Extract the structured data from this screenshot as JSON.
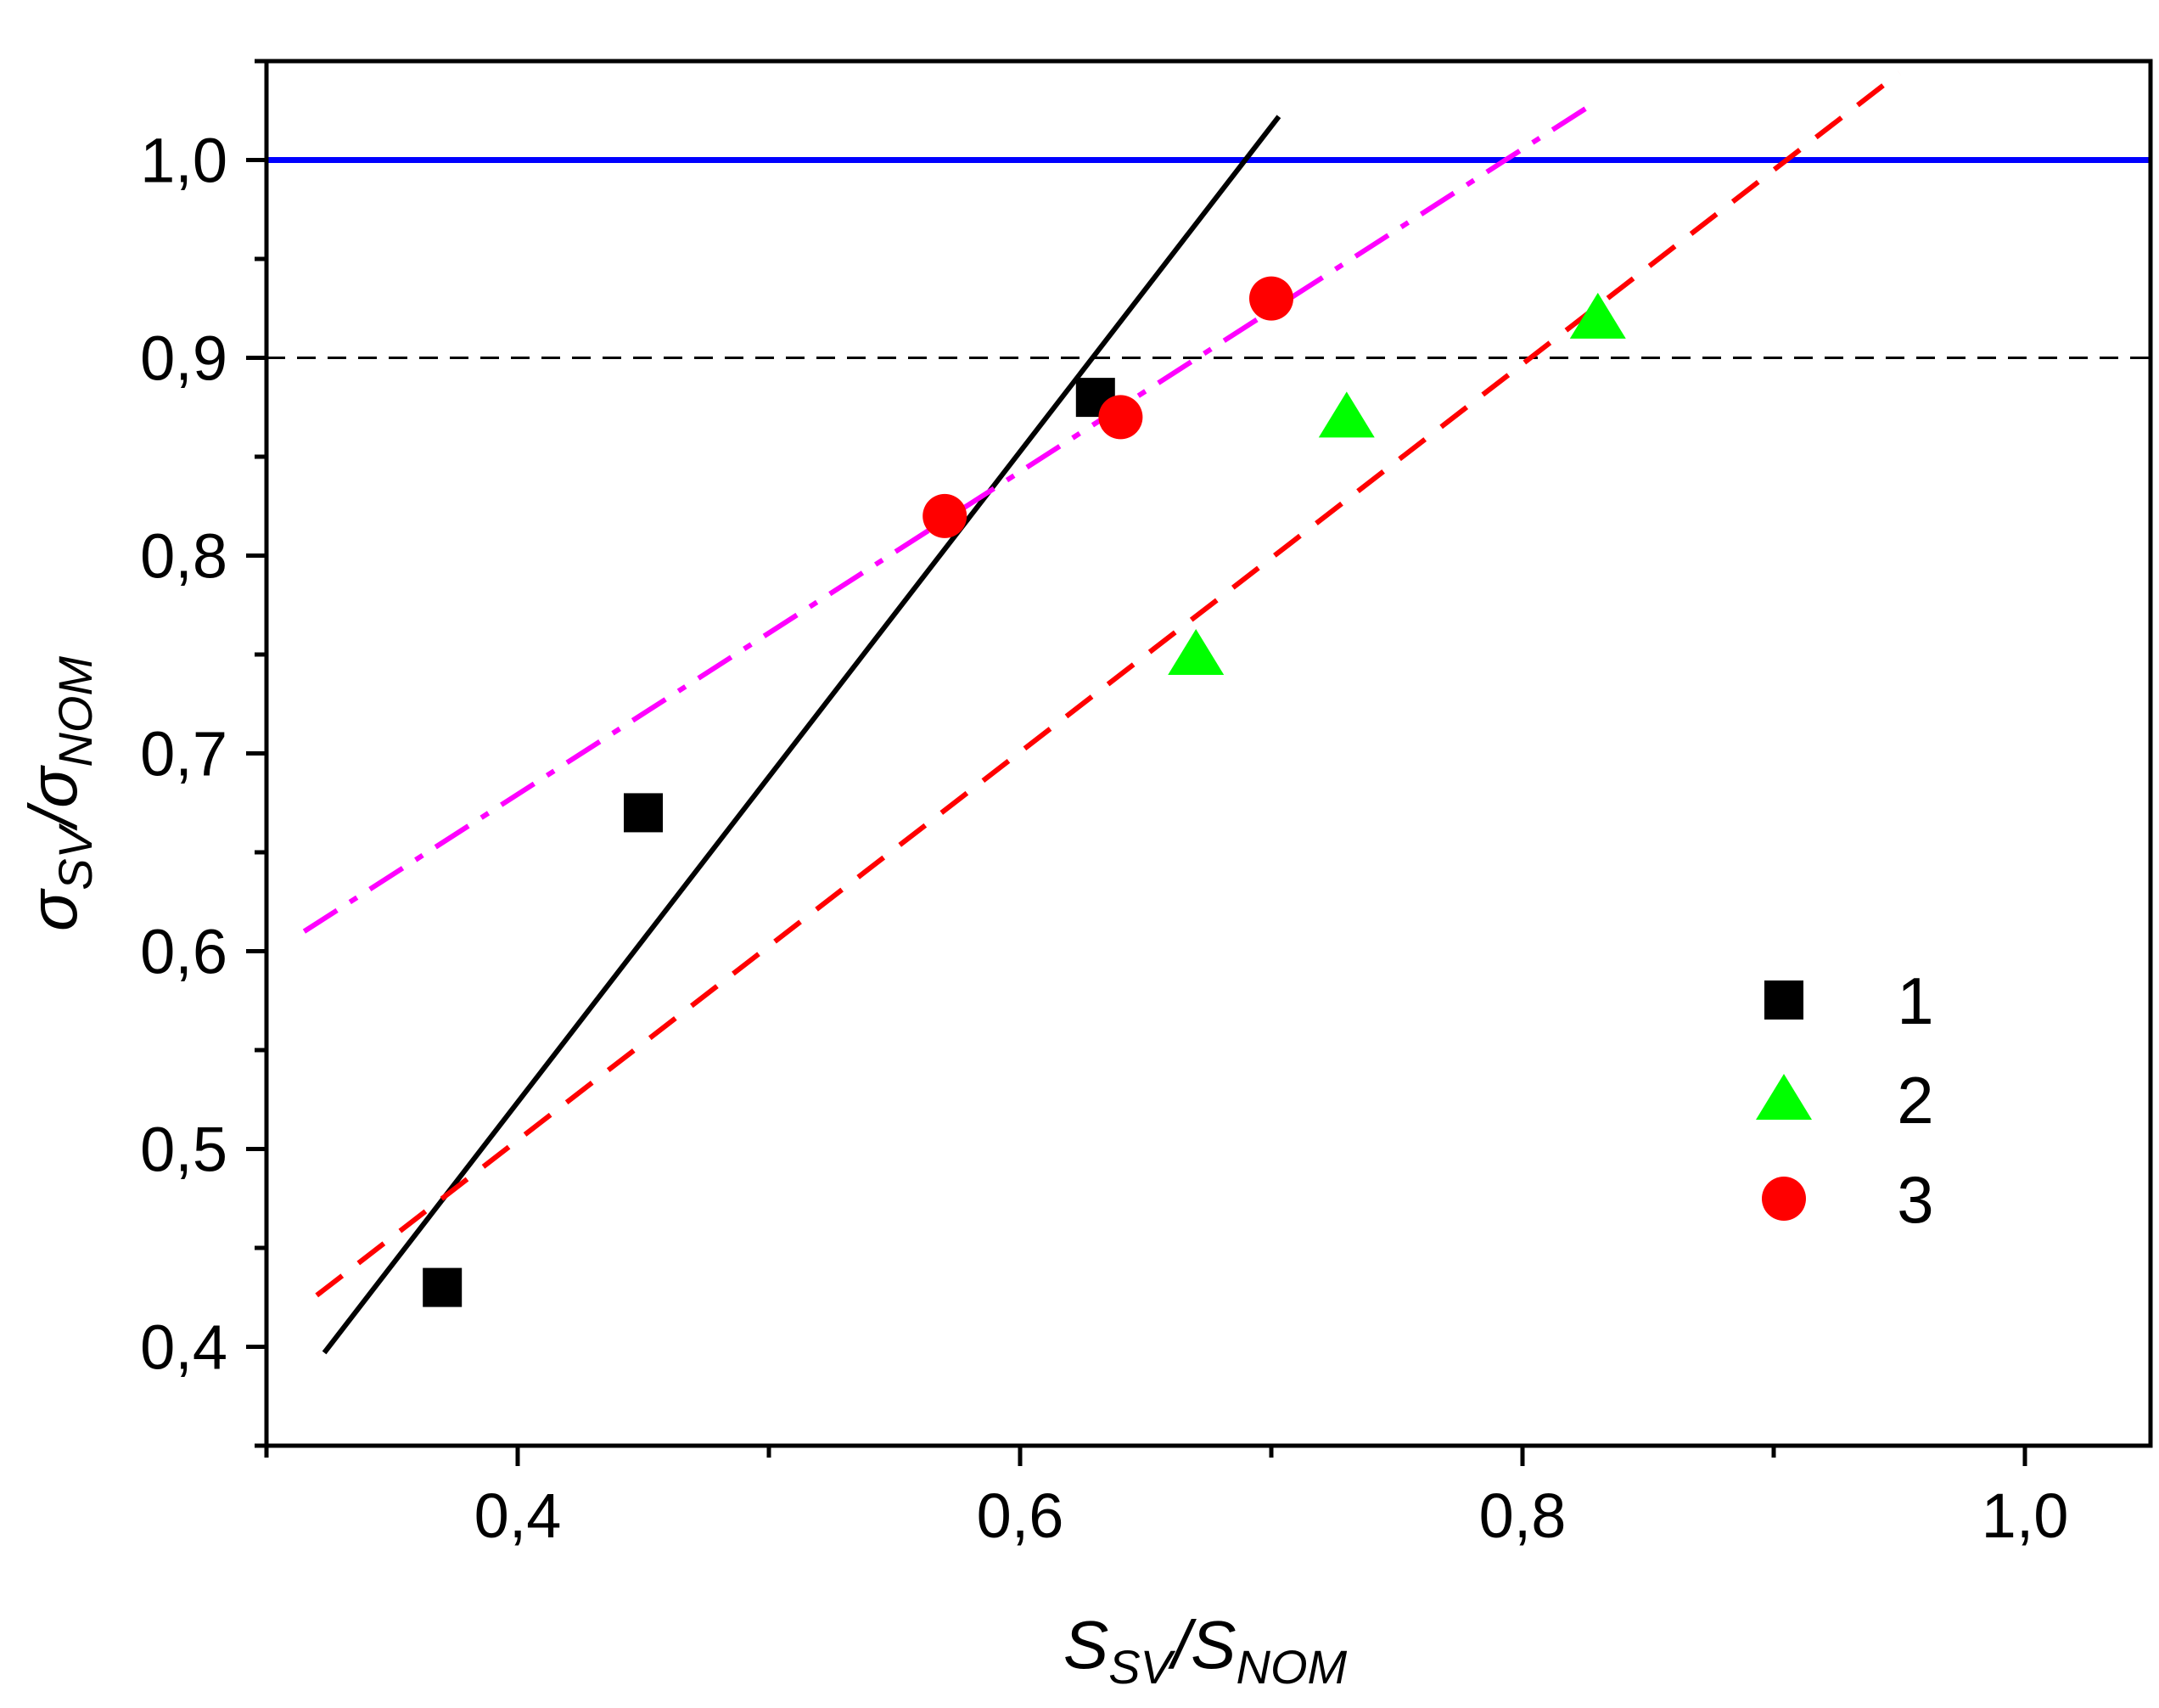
{
  "chart_data": {
    "type": "scatter",
    "title": "",
    "xlabel": {
      "main": "S",
      "sub": "SV",
      "sep": "/",
      "main2": "S",
      "sub2": "NOM"
    },
    "ylabel": {
      "main": "σ",
      "sub": "SV",
      "sep": "/",
      "main2": "σ",
      "sub2": "NOM"
    },
    "xlim": [
      0.3,
      1.05
    ],
    "ylim": [
      0.35,
      1.05
    ],
    "x_ticks": [
      {
        "value": 0.4,
        "label": "0,4"
      },
      {
        "value": 0.6,
        "label": "0,6"
      },
      {
        "value": 0.8,
        "label": "0,8"
      },
      {
        "value": 1.0,
        "label": "1,0"
      }
    ],
    "y_ticks": [
      {
        "value": 0.4,
        "label": "0,4"
      },
      {
        "value": 0.5,
        "label": "0,5"
      },
      {
        "value": 0.6,
        "label": "0,6"
      },
      {
        "value": 0.7,
        "label": "0,7"
      },
      {
        "value": 0.8,
        "label": "0,8"
      },
      {
        "value": 0.9,
        "label": "0,9"
      },
      {
        "value": 1.0,
        "label": "1,0"
      }
    ],
    "series": [
      {
        "name": "1",
        "marker": "square",
        "color": "#000000",
        "points": [
          [
            0.37,
            0.43
          ],
          [
            0.45,
            0.67
          ],
          [
            0.63,
            0.88
          ]
        ]
      },
      {
        "name": "2",
        "marker": "triangle",
        "color": "#00ff00",
        "points": [
          [
            0.67,
            0.75
          ],
          [
            0.73,
            0.87
          ],
          [
            0.83,
            0.92
          ]
        ]
      },
      {
        "name": "3",
        "marker": "circle",
        "color": "#ff0000",
        "points": [
          [
            0.57,
            0.82
          ],
          [
            0.64,
            0.87
          ],
          [
            0.7,
            0.93
          ]
        ]
      }
    ],
    "fit_lines": [
      {
        "name": "fit-1",
        "style": "solid",
        "color": "#000000",
        "x": [
          0.323,
          0.703
        ],
        "y": [
          0.397,
          1.022
        ]
      },
      {
        "name": "fit-2",
        "style": "dashed",
        "color": "#ff0000",
        "x": [
          0.32,
          0.95
        ],
        "y": [
          0.426,
          1.044
        ]
      },
      {
        "name": "fit-3",
        "style": "dashdot",
        "color": "#ff00ff",
        "x": [
          0.315,
          0.83
        ],
        "y": [
          0.61,
          1.03
        ]
      }
    ],
    "reference_lines": [
      {
        "name": "ref-1.0",
        "style": "solid",
        "color": "#0000ff",
        "y": 1.0
      },
      {
        "name": "ref-0.9",
        "style": "dashed",
        "color": "#000000",
        "y": 0.9
      }
    ],
    "legend": {
      "position": "right-middle",
      "entries": [
        {
          "label": "1",
          "marker": "square",
          "color": "#000000"
        },
        {
          "label": "2",
          "marker": "triangle",
          "color": "#00ff00"
        },
        {
          "label": "3",
          "marker": "circle",
          "color": "#ff0000"
        }
      ]
    }
  }
}
